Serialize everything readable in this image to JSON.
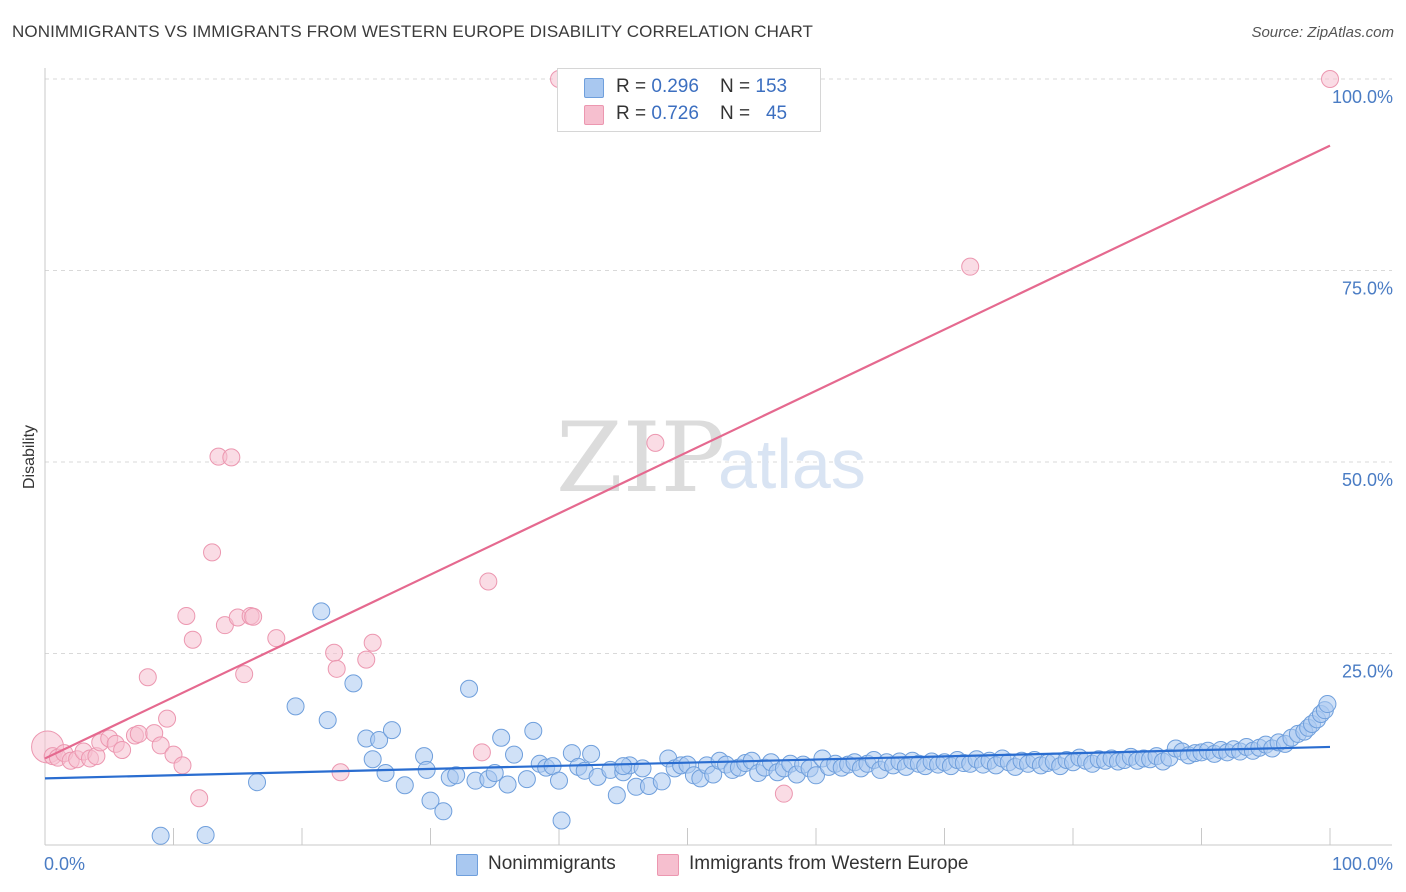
{
  "title": "NONIMMIGRANTS VS IMMIGRANTS FROM WESTERN EUROPE DISABILITY CORRELATION CHART",
  "source": "Source: ZipAtlas.com",
  "watermark": {
    "zip": "ZIP",
    "atlas": "atlas"
  },
  "colors": {
    "blue_fill": "#a9c8f0",
    "blue_stroke": "#6f9fdc",
    "blue_line": "#2a6dd0",
    "pink_fill": "#f6bfcf",
    "pink_stroke": "#ec97b0",
    "pink_line": "#e5698f",
    "grid": "#d9d9d9",
    "tick_text": "#4a7cc4"
  },
  "legend": {
    "rows": [
      {
        "r_label": "R = ",
        "r_value": "0.296",
        "n_label": "N = ",
        "n_value": "153",
        "color": "#a9c8f0"
      },
      {
        "r_label": "R = ",
        "r_value": "0.726",
        "n_label": "N = ",
        "n_value": "45",
        "color": "#f6bfcf"
      }
    ]
  },
  "bottom_legend": [
    {
      "label": "Nonimmigrants",
      "color": "#a9c8f0"
    },
    {
      "label": "Immigrants from Western Europe",
      "color": "#f6bfcf"
    }
  ],
  "chart_data": {
    "type": "scatter",
    "title": "NONIMMIGRANTS VS IMMIGRANTS FROM WESTERN EUROPE DISABILITY CORRELATION CHART",
    "xlabel": "",
    "ylabel": "Disability",
    "xlim": [
      0,
      100
    ],
    "ylim": [
      0,
      100
    ],
    "x_tick_labels": [
      "0.0%",
      "100.0%"
    ],
    "y_ticks": [
      25,
      50,
      75,
      100
    ],
    "y_tick_labels": [
      "25.0%",
      "50.0%",
      "75.0%",
      "100.0%"
    ],
    "grid": true,
    "legend_position": "top-center",
    "series": [
      {
        "name": "Nonimmigrants",
        "R": 0.296,
        "N": 153,
        "trend": {
          "x": [
            0,
            100
          ],
          "y": [
            8.7,
            12.8
          ]
        },
        "points": [
          [
            9,
            1.2
          ],
          [
            12.5,
            1.3
          ],
          [
            16.5,
            8.2
          ],
          [
            19.5,
            18.1
          ],
          [
            21.5,
            30.5
          ],
          [
            22,
            16.3
          ],
          [
            24,
            21.1
          ],
          [
            25,
            13.9
          ],
          [
            25.5,
            11.2
          ],
          [
            26,
            13.7
          ],
          [
            26.5,
            9.4
          ],
          [
            27,
            15
          ],
          [
            28,
            7.8
          ],
          [
            29.5,
            11.6
          ],
          [
            29.7,
            9.8
          ],
          [
            30,
            5.8
          ],
          [
            31,
            4.4
          ],
          [
            31.5,
            8.8
          ],
          [
            32,
            9.1
          ],
          [
            33,
            20.4
          ],
          [
            33.5,
            8.4
          ],
          [
            34.5,
            8.6
          ],
          [
            35,
            9.4
          ],
          [
            35.5,
            14
          ],
          [
            36,
            7.9
          ],
          [
            36.5,
            11.8
          ],
          [
            37.5,
            8.6
          ],
          [
            38,
            14.9
          ],
          [
            38.5,
            10.6
          ],
          [
            39,
            10.1
          ],
          [
            39.5,
            10.3
          ],
          [
            40,
            8.4
          ],
          [
            40.2,
            3.2
          ],
          [
            41,
            12
          ],
          [
            41.5,
            10.2
          ],
          [
            42,
            9.7
          ],
          [
            42.5,
            11.9
          ],
          [
            43,
            8.9
          ],
          [
            44,
            9.8
          ],
          [
            44.5,
            6.5
          ],
          [
            45,
            9.5
          ],
          [
            45.5,
            10.4
          ],
          [
            46,
            7.6
          ],
          [
            46.5,
            10
          ],
          [
            47,
            7.7
          ],
          [
            48,
            8.3
          ],
          [
            48.5,
            11.3
          ],
          [
            49,
            10
          ],
          [
            49.5,
            10.4
          ],
          [
            50,
            10.5
          ],
          [
            50.5,
            9.1
          ],
          [
            51,
            8.7
          ],
          [
            51.5,
            10.4
          ],
          [
            52,
            9.2
          ],
          [
            52.5,
            11
          ],
          [
            53,
            10.5
          ],
          [
            53.5,
            9.8
          ],
          [
            54,
            10.1
          ],
          [
            54.5,
            10.7
          ],
          [
            55,
            11
          ],
          [
            55.5,
            9.4
          ],
          [
            56,
            10.1
          ],
          [
            56.5,
            10.8
          ],
          [
            57,
            9.5
          ],
          [
            57.5,
            10
          ],
          [
            58,
            10.6
          ],
          [
            58.5,
            9.2
          ],
          [
            59,
            10.5
          ],
          [
            59.5,
            10
          ],
          [
            60,
            9.1
          ],
          [
            60.5,
            11.3
          ],
          [
            61,
            10.2
          ],
          [
            61.5,
            10.6
          ],
          [
            62,
            10.1
          ],
          [
            62.5,
            10.5
          ],
          [
            63,
            10.8
          ],
          [
            63.5,
            10
          ],
          [
            64,
            10.6
          ],
          [
            64.5,
            11.1
          ],
          [
            65,
            9.8
          ],
          [
            65.5,
            10.8
          ],
          [
            66,
            10.4
          ],
          [
            66.5,
            10.9
          ],
          [
            67,
            10.2
          ],
          [
            67.5,
            11
          ],
          [
            68,
            10.6
          ],
          [
            68.5,
            10.3
          ],
          [
            69,
            10.9
          ],
          [
            69.5,
            10.5
          ],
          [
            70,
            10.8
          ],
          [
            70.5,
            10.3
          ],
          [
            71,
            11.1
          ],
          [
            71.5,
            10.7
          ],
          [
            72,
            10.6
          ],
          [
            72.5,
            11.2
          ],
          [
            73,
            10.5
          ],
          [
            73.5,
            11
          ],
          [
            74,
            10.4
          ],
          [
            74.5,
            11.3
          ],
          [
            75,
            10.8
          ],
          [
            75.5,
            10.2
          ],
          [
            76,
            11
          ],
          [
            76.5,
            10.6
          ],
          [
            77,
            11.1
          ],
          [
            77.5,
            10.4
          ],
          [
            78,
            10.7
          ],
          [
            78.5,
            10.9
          ],
          [
            79,
            10.3
          ],
          [
            79.5,
            11.1
          ],
          [
            80,
            10.8
          ],
          [
            80.5,
            11.4
          ],
          [
            81,
            11
          ],
          [
            81.5,
            10.6
          ],
          [
            82,
            11.2
          ],
          [
            82.5,
            11
          ],
          [
            83,
            11.3
          ],
          [
            83.5,
            10.9
          ],
          [
            84,
            11.1
          ],
          [
            84.5,
            11.5
          ],
          [
            85,
            11
          ],
          [
            85.5,
            11.3
          ],
          [
            86,
            11.2
          ],
          [
            86.5,
            11.6
          ],
          [
            87,
            10.9
          ],
          [
            87.5,
            11.4
          ],
          [
            88,
            12.6
          ],
          [
            88.5,
            12.2
          ],
          [
            89,
            11.7
          ],
          [
            89.5,
            12
          ],
          [
            90,
            12.1
          ],
          [
            90.5,
            12.3
          ],
          [
            91,
            11.9
          ],
          [
            91.5,
            12.4
          ],
          [
            92,
            12.1
          ],
          [
            92.5,
            12.5
          ],
          [
            93,
            12.2
          ],
          [
            93.5,
            12.8
          ],
          [
            94,
            12.3
          ],
          [
            94.5,
            12.7
          ],
          [
            95,
            13.1
          ],
          [
            95.5,
            12.6
          ],
          [
            96,
            13.4
          ],
          [
            96.5,
            13.2
          ],
          [
            97,
            14
          ],
          [
            97.5,
            14.5
          ],
          [
            98,
            14.8
          ],
          [
            98.3,
            15.3
          ],
          [
            98.6,
            15.8
          ],
          [
            99,
            16.4
          ],
          [
            99.3,
            17.1
          ],
          [
            99.6,
            17.6
          ],
          [
            99.8,
            18.4
          ],
          [
            45,
            10.3
          ]
        ]
      },
      {
        "name": "Immigrants from Western Europe",
        "R": 0.726,
        "N": 45,
        "trend": {
          "x": [
            0,
            100
          ],
          "y": [
            11.3,
            91.3
          ]
        },
        "points": [
          [
            0.2,
            12.8
          ],
          [
            0.6,
            11.6
          ],
          [
            1,
            11.4
          ],
          [
            1.5,
            12
          ],
          [
            2,
            11
          ],
          [
            2.5,
            11.2
          ],
          [
            3,
            12.2
          ],
          [
            3.5,
            11.3
          ],
          [
            4,
            11.6
          ],
          [
            4.3,
            13.4
          ],
          [
            5,
            13.9
          ],
          [
            5.5,
            13.2
          ],
          [
            6,
            12.4
          ],
          [
            7,
            14.3
          ],
          [
            7.3,
            14.5
          ],
          [
            8,
            21.9
          ],
          [
            8.5,
            14.6
          ],
          [
            9,
            13
          ],
          [
            9.5,
            16.5
          ],
          [
            10,
            11.8
          ],
          [
            10.7,
            10.4
          ],
          [
            11,
            29.9
          ],
          [
            11.5,
            26.8
          ],
          [
            12,
            6.1
          ],
          [
            13,
            38.2
          ],
          [
            13.5,
            50.7
          ],
          [
            14,
            28.7
          ],
          [
            14.5,
            50.6
          ],
          [
            15,
            29.7
          ],
          [
            15.5,
            22.3
          ],
          [
            16,
            29.9
          ],
          [
            16.2,
            29.8
          ],
          [
            18,
            27
          ],
          [
            22.5,
            25.1
          ],
          [
            22.7,
            23
          ],
          [
            23,
            9.5
          ],
          [
            25,
            24.2
          ],
          [
            25.5,
            26.4
          ],
          [
            34,
            12.1
          ],
          [
            34.5,
            34.4
          ],
          [
            40,
            100
          ],
          [
            47.5,
            52.5
          ],
          [
            57.5,
            6.7
          ],
          [
            72,
            75.5
          ],
          [
            100,
            100
          ]
        ]
      }
    ]
  }
}
